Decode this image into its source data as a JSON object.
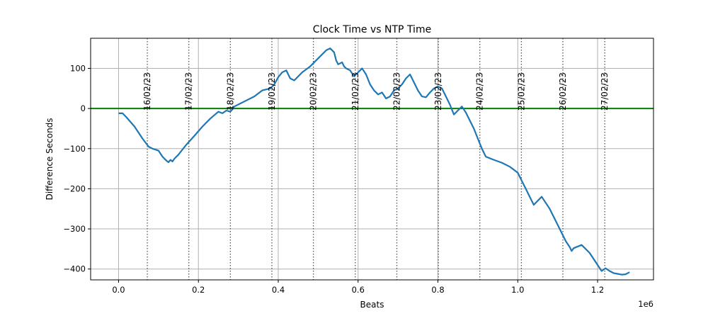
{
  "chart_data": {
    "type": "line",
    "title": "Clock Time vs NTP Time",
    "xlabel": "Beats",
    "ylabel": "Difference Seconds",
    "x_offset_text": "1e6",
    "xlim": [
      -0.07,
      1.34
    ],
    "ylim": [
      -427,
      175
    ],
    "x_ticks": [
      0.0,
      0.2,
      0.4,
      0.6,
      0.8,
      1.0,
      1.2
    ],
    "x_tick_labels": [
      "0.0",
      "0.2",
      "0.4",
      "0.6",
      "0.8",
      "1.0",
      "1.2"
    ],
    "y_ticks": [
      100,
      0,
      -100,
      -200,
      -300,
      -400
    ],
    "y_tick_labels": [
      "100",
      "0",
      "−100",
      "−200",
      "−300",
      "−400"
    ],
    "grid": true,
    "colors": {
      "series": "#1f77b4",
      "zero_line": "#008000",
      "grid": "#b0b0b0",
      "date_line": "#555555"
    },
    "reference_line": {
      "y": 0
    },
    "day_markers": [
      {
        "x": 0.072,
        "label": "16/02/23"
      },
      {
        "x": 0.176,
        "label": "17/02/23"
      },
      {
        "x": 0.28,
        "label": "18/02/23"
      },
      {
        "x": 0.384,
        "label": "19/02/23"
      },
      {
        "x": 0.488,
        "label": "20/02/23"
      },
      {
        "x": 0.593,
        "label": "21/02/23"
      },
      {
        "x": 0.697,
        "label": "22/02/23"
      },
      {
        "x": 0.801,
        "label": "23/02/23"
      },
      {
        "x": 0.905,
        "label": "24/02/23"
      },
      {
        "x": 1.009,
        "label": "25/02/23"
      },
      {
        "x": 1.113,
        "label": "26/02/23"
      },
      {
        "x": 1.218,
        "label": "27/02/23"
      }
    ],
    "series": [
      {
        "x": [
          0.0,
          0.01,
          0.02,
          0.04,
          0.06,
          0.075,
          0.085,
          0.1,
          0.11,
          0.12,
          0.125,
          0.13,
          0.135,
          0.14,
          0.15,
          0.17,
          0.19,
          0.21,
          0.23,
          0.25,
          0.26,
          0.27,
          0.28,
          0.285,
          0.29,
          0.3,
          0.32,
          0.34,
          0.36,
          0.38,
          0.39,
          0.4,
          0.41,
          0.42,
          0.43,
          0.44,
          0.46,
          0.48,
          0.5,
          0.52,
          0.53,
          0.54,
          0.545,
          0.55,
          0.56,
          0.565,
          0.57,
          0.58,
          0.59,
          0.6,
          0.61,
          0.62,
          0.63,
          0.64,
          0.65,
          0.66,
          0.67,
          0.68,
          0.69,
          0.7,
          0.71,
          0.72,
          0.73,
          0.74,
          0.75,
          0.76,
          0.77,
          0.78,
          0.79,
          0.8,
          0.81,
          0.82,
          0.83,
          0.84,
          0.85,
          0.86,
          0.87,
          0.88,
          0.89,
          0.9,
          0.91,
          0.92,
          0.94,
          0.96,
          0.98,
          1.0,
          1.01,
          1.02,
          1.03,
          1.04,
          1.05,
          1.06,
          1.08,
          1.1,
          1.11,
          1.12,
          1.13,
          1.135,
          1.14,
          1.16,
          1.18,
          1.2,
          1.21,
          1.22,
          1.23,
          1.24,
          1.25,
          1.26,
          1.27,
          1.28
        ],
        "y": [
          -12,
          -12,
          -22,
          -45,
          -75,
          -95,
          -100,
          -105,
          -120,
          -130,
          -134,
          -128,
          -132,
          -125,
          -115,
          -90,
          -68,
          -45,
          -25,
          -8,
          -12,
          -5,
          -8,
          -2,
          5,
          10,
          20,
          30,
          45,
          50,
          60,
          78,
          90,
          95,
          75,
          70,
          90,
          105,
          125,
          145,
          150,
          140,
          120,
          110,
          115,
          105,
          100,
          95,
          80,
          90,
          100,
          85,
          60,
          45,
          35,
          40,
          25,
          30,
          45,
          50,
          60,
          75,
          85,
          65,
          45,
          30,
          28,
          40,
          50,
          55,
          50,
          30,
          10,
          -15,
          -5,
          5,
          -10,
          -30,
          -50,
          -75,
          -100,
          -120,
          -128,
          -135,
          -145,
          -160,
          -180,
          -200,
          -220,
          -240,
          -230,
          -220,
          -250,
          -290,
          -310,
          -330,
          -345,
          -355,
          -348,
          -340,
          -360,
          -390,
          -405,
          -398,
          -405,
          -410,
          -412,
          -414,
          -413,
          -408
        ]
      }
    ]
  }
}
